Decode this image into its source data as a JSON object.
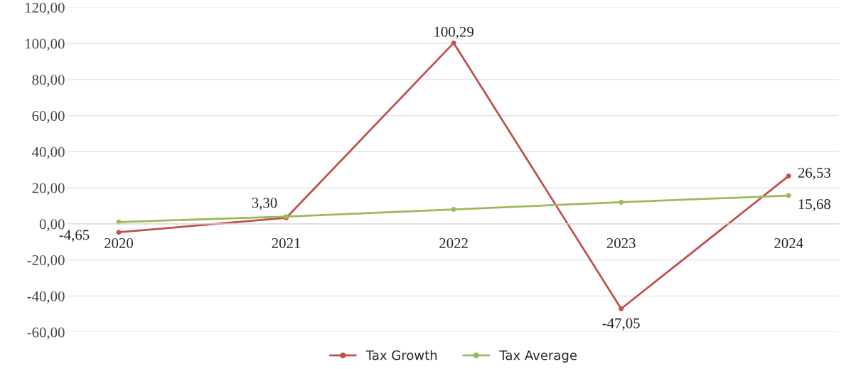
{
  "chart_data": {
    "type": "line",
    "categories": [
      "2020",
      "2021",
      "2022",
      "2023",
      "2024"
    ],
    "series": [
      {
        "name": "Tax Growth",
        "color": "#c0504d",
        "values": [
          -4.65,
          3.3,
          100.29,
          -47.05,
          26.53
        ],
        "value_labels": [
          "-4,65",
          "3,30",
          "100,29",
          "-47,05",
          "26,53"
        ]
      },
      {
        "name": "Tax Average",
        "color": "#9bbb59",
        "values": [
          1.0,
          4.0,
          8.0,
          12.0,
          15.68
        ],
        "value_labels": [
          null,
          null,
          null,
          null,
          "15,68"
        ]
      }
    ],
    "ylim": [
      -60,
      120
    ],
    "yticks": [
      {
        "value": -60,
        "label": "-60,00"
      },
      {
        "value": -40,
        "label": "-40,00"
      },
      {
        "value": -20,
        "label": "-20,00"
      },
      {
        "value": 0,
        "label": "0,00"
      },
      {
        "value": 20,
        "label": "20,00"
      },
      {
        "value": 40,
        "label": "40,00"
      },
      {
        "value": 60,
        "label": "60,00"
      },
      {
        "value": 80,
        "label": "80,00"
      },
      {
        "value": 100,
        "label": "100,00"
      },
      {
        "value": 120,
        "label": "120,00"
      }
    ],
    "grid": "y",
    "legend": "bottom",
    "marker": "circle",
    "line_style": "solid"
  }
}
